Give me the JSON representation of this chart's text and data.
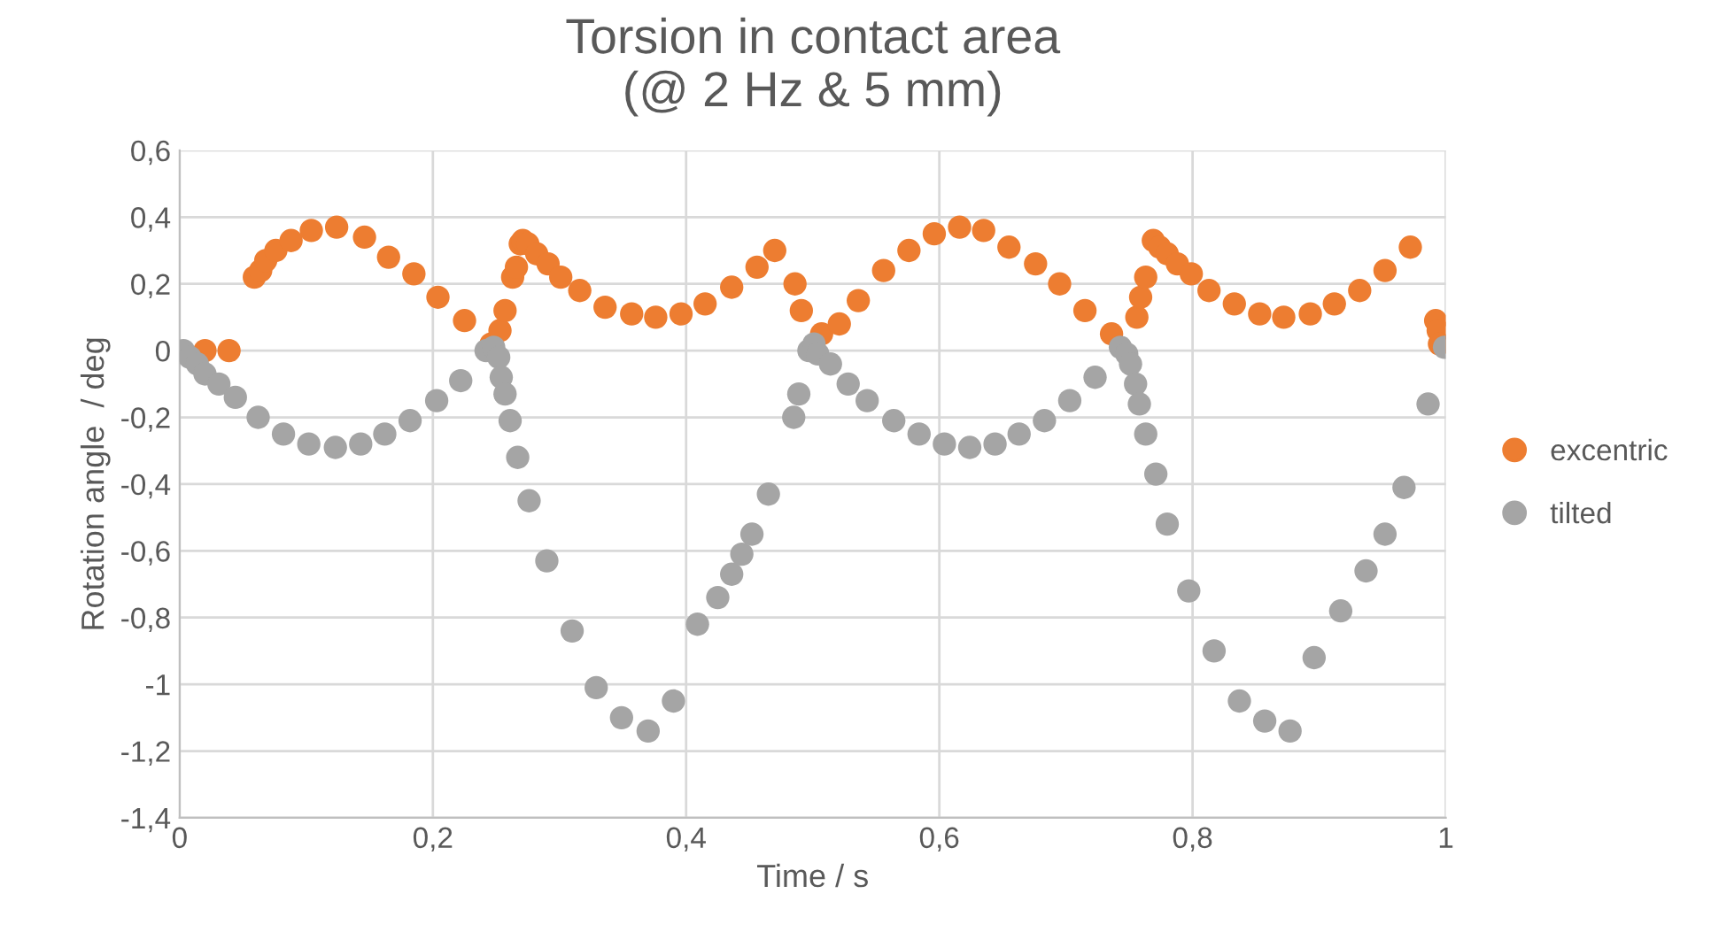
{
  "chart_data": {
    "type": "scatter",
    "title": "Torsion in contact area\n(@ 2 Hz & 5 mm)",
    "xlabel": "Time / s",
    "ylabel": "Rotation angle  / deg",
    "series": [
      {
        "name": "excentric",
        "color": "#ed7d31",
        "x": [
          0.02,
          0.039,
          0.059,
          0.064,
          0.068,
          0.076,
          0.088,
          0.104,
          0.124,
          0.146,
          0.165,
          0.185,
          0.204,
          0.225,
          0.246,
          0.253,
          0.257,
          0.263,
          0.266,
          0.269,
          0.271,
          0.275,
          0.282,
          0.291,
          0.301,
          0.316,
          0.336,
          0.357,
          0.376,
          0.396,
          0.415,
          0.436,
          0.456,
          0.47,
          0.486,
          0.491,
          0.507,
          0.521,
          0.536,
          0.556,
          0.576,
          0.596,
          0.616,
          0.635,
          0.655,
          0.676,
          0.695,
          0.715,
          0.736,
          0.756,
          0.759,
          0.763,
          0.769,
          0.774,
          0.78,
          0.788,
          0.799,
          0.813,
          0.833,
          0.853,
          0.872,
          0.893,
          0.912,
          0.932,
          0.952,
          0.972,
          0.992,
          0.994,
          0.995
        ],
        "values": [
          0.0,
          0.0,
          0.22,
          0.24,
          0.27,
          0.3,
          0.33,
          0.36,
          0.37,
          0.34,
          0.28,
          0.23,
          0.16,
          0.09,
          0.02,
          0.06,
          0.12,
          0.22,
          0.25,
          0.32,
          0.33,
          0.32,
          0.29,
          0.26,
          0.22,
          0.18,
          0.13,
          0.11,
          0.1,
          0.11,
          0.14,
          0.19,
          0.25,
          0.3,
          0.2,
          0.12,
          0.05,
          0.08,
          0.15,
          0.24,
          0.3,
          0.35,
          0.37,
          0.36,
          0.31,
          0.26,
          0.2,
          0.12,
          0.05,
          0.1,
          0.16,
          0.22,
          0.33,
          0.31,
          0.29,
          0.26,
          0.23,
          0.18,
          0.14,
          0.11,
          0.1,
          0.11,
          0.14,
          0.18,
          0.24,
          0.31,
          0.09,
          0.06,
          0.02
        ]
      },
      {
        "name": "tilted",
        "color": "#a5a5a5",
        "x": [
          0.003,
          0.008,
          0.014,
          0.02,
          0.031,
          0.044,
          0.062,
          0.082,
          0.102,
          0.123,
          0.143,
          0.162,
          0.182,
          0.203,
          0.222,
          0.242,
          0.248,
          0.252,
          0.254,
          0.257,
          0.261,
          0.267,
          0.276,
          0.29,
          0.31,
          0.329,
          0.349,
          0.37,
          0.39,
          0.409,
          0.425,
          0.436,
          0.444,
          0.452,
          0.465,
          0.485,
          0.489,
          0.497,
          0.501,
          0.504,
          0.514,
          0.528,
          0.543,
          0.564,
          0.584,
          0.604,
          0.624,
          0.644,
          0.663,
          0.683,
          0.703,
          0.723,
          0.743,
          0.748,
          0.751,
          0.755,
          0.758,
          0.763,
          0.771,
          0.78,
          0.797,
          0.817,
          0.837,
          0.857,
          0.877,
          0.896,
          0.917,
          0.937,
          0.952,
          0.967,
          0.986,
          0.999
        ],
        "values": [
          0.0,
          -0.02,
          -0.04,
          -0.07,
          -0.1,
          -0.14,
          -0.2,
          -0.25,
          -0.28,
          -0.29,
          -0.28,
          -0.25,
          -0.21,
          -0.15,
          -0.09,
          0.0,
          0.01,
          -0.02,
          -0.08,
          -0.13,
          -0.21,
          -0.32,
          -0.45,
          -0.63,
          -0.84,
          -1.01,
          -1.1,
          -1.14,
          -1.05,
          -0.82,
          -0.74,
          -0.67,
          -0.61,
          -0.55,
          -0.43,
          -0.2,
          -0.13,
          0.0,
          0.02,
          -0.01,
          -0.04,
          -0.1,
          -0.15,
          -0.21,
          -0.25,
          -0.28,
          -0.29,
          -0.28,
          -0.25,
          -0.21,
          -0.15,
          -0.08,
          0.01,
          -0.01,
          -0.04,
          -0.1,
          -0.16,
          -0.25,
          -0.37,
          -0.52,
          -0.72,
          -0.9,
          -1.05,
          -1.11,
          -1.14,
          -0.92,
          -0.78,
          -0.66,
          -0.55,
          -0.41,
          -0.16,
          0.01
        ]
      }
    ],
    "xlim": [
      0,
      1
    ],
    "xticks": [
      0,
      {
        "value": 0.2,
        "label": "0,2"
      },
      {
        "value": 0.4,
        "label": "0,4"
      },
      {
        "value": 0.6,
        "label": "0,6"
      },
      {
        "value": 0.8,
        "label": "0,8"
      },
      1
    ],
    "ylim": [
      -1.4,
      0.6
    ],
    "yticks": [
      {
        "value": -1.4,
        "label": "-1,4"
      },
      {
        "value": -1.2,
        "label": "-1,2"
      },
      -1,
      {
        "value": -0.8,
        "label": "-0,8"
      },
      {
        "value": -0.6,
        "label": "-0,6"
      },
      {
        "value": -0.4,
        "label": "-0,4"
      },
      {
        "value": -0.2,
        "label": "-0,2"
      },
      0,
      {
        "value": 0.2,
        "label": "0,2"
      },
      {
        "value": 0.4,
        "label": "0,4"
      },
      {
        "value": 0.6,
        "label": "0,6"
      }
    ],
    "grid": true,
    "legend": "right",
    "marker": "circle"
  }
}
